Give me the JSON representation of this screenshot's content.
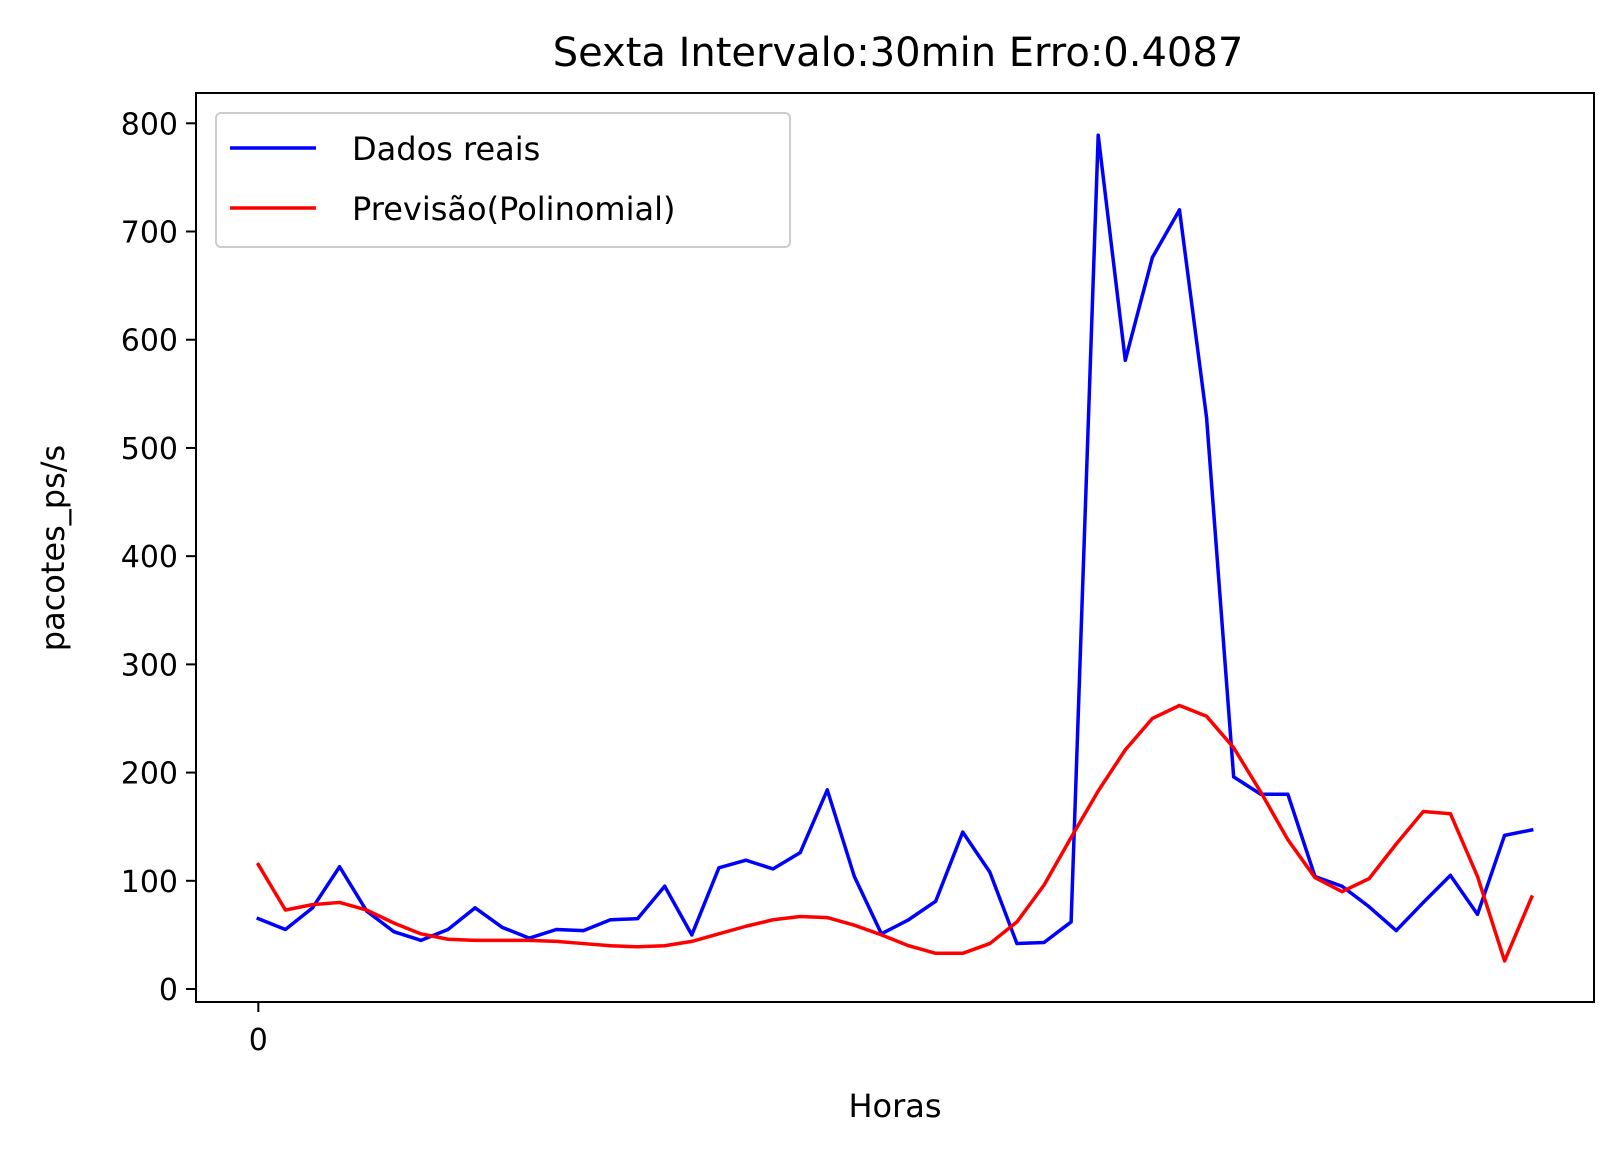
{
  "chart_data": {
    "type": "line",
    "title": "Sexta Intervalo:30min Erro:0.4087",
    "xlabel": "Horas",
    "ylabel": "pacotes_ps/s",
    "xticks": [
      0
    ],
    "yticks": [
      0,
      100,
      200,
      300,
      400,
      500,
      600,
      700,
      800
    ],
    "xlim": [
      -2.3,
      49.3
    ],
    "ylim": [
      -12,
      828
    ],
    "grid": false,
    "legend_position": "top-left",
    "series": [
      {
        "name": "Dados reais",
        "color": "#0000ff",
        "values": [
          65,
          55,
          75,
          113,
          72,
          53,
          45,
          55,
          75,
          57,
          47,
          55,
          54,
          64,
          65,
          95,
          50,
          112,
          119,
          111,
          126,
          184,
          104,
          51,
          64,
          81,
          145,
          108,
          42,
          43,
          62,
          789,
          581,
          676,
          720,
          528,
          196,
          180,
          180,
          104,
          95,
          76,
          54,
          80,
          105,
          69,
          142,
          147
        ]
      },
      {
        "name": "Previsão(Polinomial)",
        "color": "#ff0000",
        "values": [
          115,
          73,
          78,
          80,
          73,
          61,
          51,
          46,
          45,
          45,
          45,
          44,
          42,
          40,
          39,
          40,
          44,
          51,
          58,
          64,
          67,
          66,
          59,
          50,
          40,
          33,
          33,
          42,
          62,
          96,
          140,
          183,
          221,
          250,
          262,
          252,
          223,
          182,
          138,
          103,
          90,
          102,
          134,
          164,
          162,
          104,
          26,
          85
        ]
      }
    ]
  }
}
